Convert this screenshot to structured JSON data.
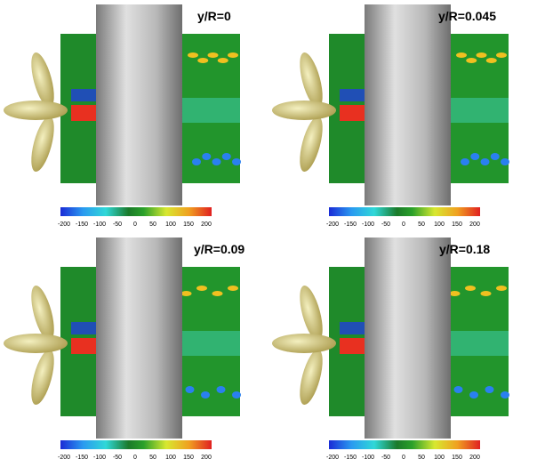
{
  "panels": [
    {
      "title": "y/R=0",
      "colorbar_ticks": [
        "-200",
        "-150",
        "-100",
        "-50",
        "0",
        "50",
        "100",
        "150",
        "200"
      ]
    },
    {
      "title": "y/R=0.045",
      "colorbar_ticks": [
        "-200",
        "-150",
        "-100",
        "-50",
        "0",
        "50",
        "100",
        "150",
        "200"
      ]
    },
    {
      "title": "y/R=0.09",
      "colorbar_ticks": [
        "-200",
        "-150",
        "-100",
        "-50",
        "0",
        "50",
        "100",
        "150",
        "200"
      ]
    },
    {
      "title": "y/R=0.18",
      "colorbar_ticks": [
        "-200",
        "-150",
        "-100",
        "-50",
        "0",
        "50",
        "100",
        "150",
        "200"
      ]
    }
  ]
}
